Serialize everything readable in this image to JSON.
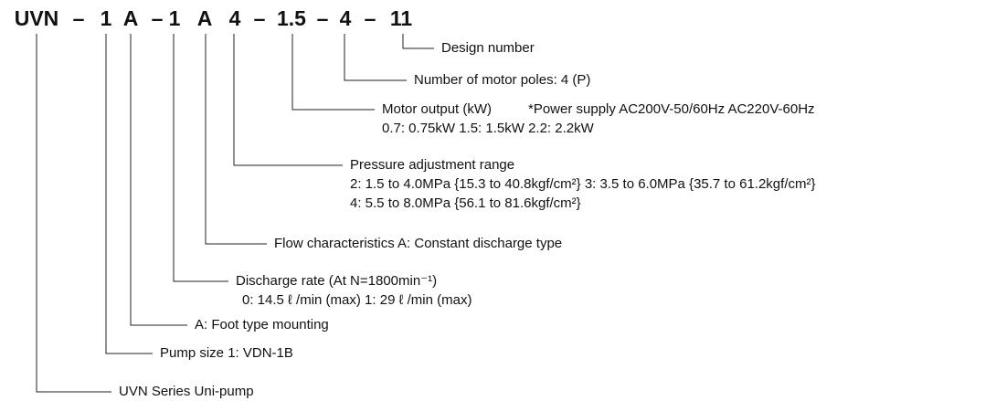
{
  "code": [
    "UVN",
    "–",
    "1",
    "A",
    "–",
    "1",
    "A",
    "4",
    "–",
    "1.5",
    "–",
    "4",
    "–",
    "11"
  ],
  "items": [
    {
      "label": "Design number",
      "details": []
    },
    {
      "label": "Number of motor poles: 4 (P)",
      "details": []
    },
    {
      "label": "Motor output (kW)",
      "note": "*Power supply  AC200V-50/60Hz  AC220V-60Hz",
      "details": [
        "0.7: 0.75kW     1.5: 1.5kW     2.2: 2.2kW"
      ]
    },
    {
      "label": "Pressure adjustment range",
      "details": [
        "2: 1.5 to 4.0MPa {15.3 to 40.8kgf/cm²}     3: 3.5 to 6.0MPa {35.7 to 61.2kgf/cm²}",
        "4: 5.5 to 8.0MPa {56.1 to 81.6kgf/cm²}"
      ]
    },
    {
      "label": "Flow characteristics   A: Constant discharge type",
      "details": []
    },
    {
      "label": "Discharge rate (At N=1800min⁻¹)",
      "details": [
        "0: 14.5 ℓ /min (max)  1: 29 ℓ /min (max)"
      ]
    },
    {
      "label": "A: Foot type mounting",
      "details": []
    },
    {
      "label": "Pump size   1: VDN-1B",
      "details": []
    },
    {
      "label": "UVN Series Uni-pump",
      "details": []
    }
  ]
}
